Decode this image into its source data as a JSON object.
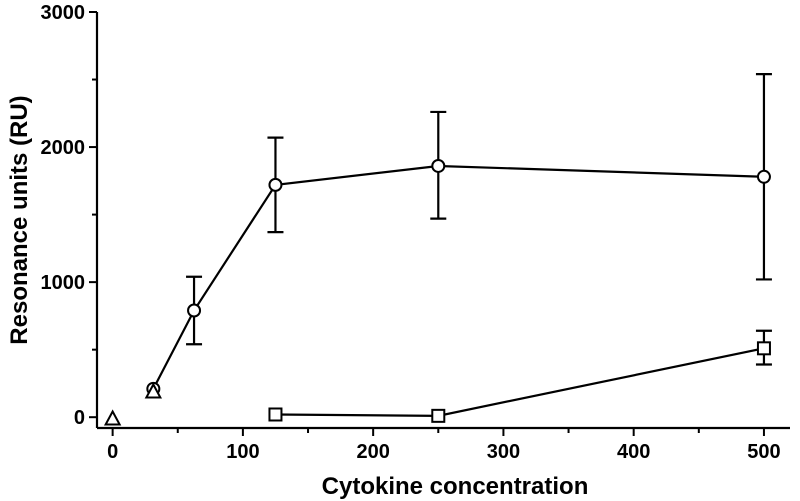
{
  "chart_data": {
    "type": "line",
    "title": "",
    "xlabel": "Cytokine concentration",
    "ylabel": "Resonance units  (RU)",
    "xlim": [
      -12,
      520
    ],
    "ylim": [
      -80,
      3000
    ],
    "x_ticks": [
      0,
      100,
      200,
      300,
      400,
      500
    ],
    "y_ticks": [
      0,
      1000,
      2000,
      3000
    ],
    "grid": false,
    "legend": "none",
    "series": [
      {
        "marker": "circle",
        "x": [
          31.25,
          62.5,
          125,
          250,
          500
        ],
        "y": [
          210,
          790,
          1720,
          1860,
          1780
        ],
        "yerr_low": [
          null,
          540,
          1370,
          1470,
          1020
        ],
        "yerr_high": [
          null,
          1040,
          2070,
          2260,
          2540
        ]
      },
      {
        "marker": "square",
        "x": [
          125,
          250,
          500
        ],
        "y": [
          20,
          10,
          510
        ],
        "yerr_low": [
          null,
          null,
          390
        ],
        "yerr_high": [
          null,
          null,
          640
        ]
      },
      {
        "marker": "triangle",
        "x": [
          0,
          31.25
        ],
        "y": [
          -10,
          190
        ],
        "yerr_low": [
          null,
          null
        ],
        "yerr_high": [
          null,
          null
        ]
      }
    ],
    "colors": {
      "line": "#000000",
      "marker_fill": "#ffffff",
      "background": "#ffffff"
    }
  }
}
